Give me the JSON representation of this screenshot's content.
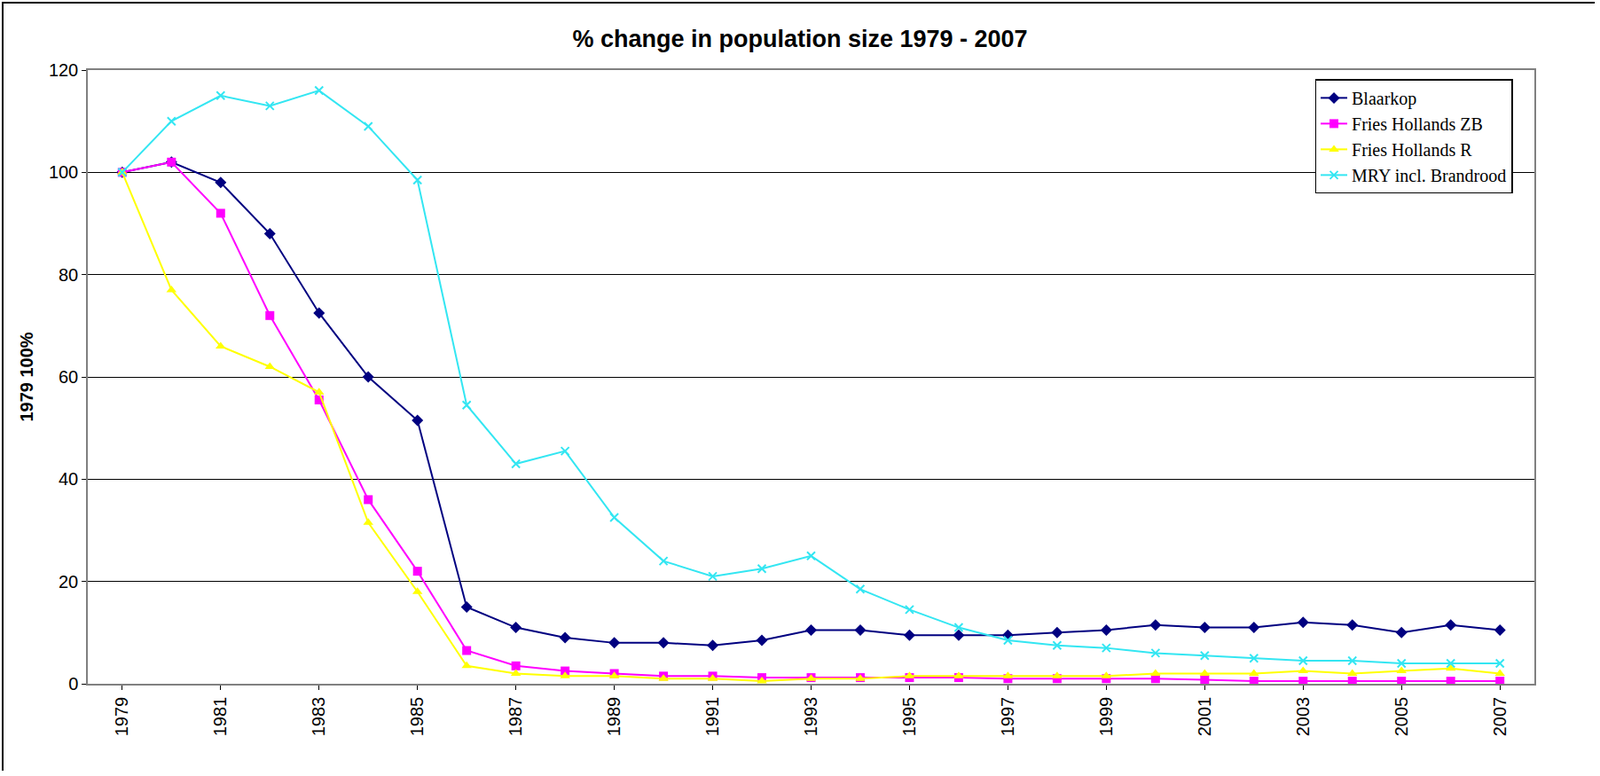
{
  "chart_data": {
    "type": "line",
    "title": "% change in population size 1979 - 2007",
    "y_label": "1979 100%",
    "x": [
      1979,
      1980,
      1981,
      1982,
      1983,
      1984,
      1985,
      1986,
      1987,
      1988,
      1989,
      1990,
      1991,
      1992,
      1993,
      1994,
      1995,
      1996,
      1997,
      1998,
      1999,
      2000,
      2001,
      2002,
      2003,
      2004,
      2005,
      2006,
      2007
    ],
    "series": [
      {
        "name": "Blaarkop",
        "color": "#000080",
        "marker": "diamond",
        "line_style": "solid",
        "values": [
          100,
          102,
          98,
          88,
          72.5,
          60,
          51.5,
          15,
          11,
          9,
          8,
          8,
          7.5,
          8.5,
          10.5,
          10.5,
          9.5,
          9.5,
          9.5,
          10,
          10.5,
          11.5,
          11,
          11,
          12,
          11.5,
          10,
          11.5,
          10.5
        ]
      },
      {
        "name": "Fries Hollands ZB",
        "color": "#ff00ff",
        "marker": "square",
        "line_style": "solid",
        "values": [
          100,
          102,
          92,
          72,
          55.5,
          36,
          22,
          6.5,
          3.5,
          2.5,
          2,
          1.5,
          1.5,
          1.2,
          1.2,
          1.2,
          1.2,
          1.2,
          1,
          1,
          1,
          1,
          0.8,
          0.5,
          0.5,
          0.5,
          0.5,
          0.5,
          0.5
        ]
      },
      {
        "name": "Fries Hollands R",
        "color": "#ffff00",
        "marker": "triangle-up",
        "line_style": "solid",
        "values": [
          100,
          77,
          66,
          62,
          57,
          31.5,
          18,
          3.5,
          2,
          1.5,
          1.5,
          1,
          1,
          0.5,
          1,
          1,
          1.5,
          1.5,
          1.5,
          1.5,
          1.5,
          2,
          2,
          2,
          2.5,
          2,
          2.5,
          3,
          2
        ]
      },
      {
        "name": "MRY incl. Brandrood",
        "color": "#33e6f2",
        "marker": "x",
        "line_style": "solid",
        "values": [
          100,
          110,
          115,
          113,
          116,
          109,
          98.5,
          54.5,
          43,
          45.5,
          32.5,
          24,
          21,
          22.5,
          25,
          18.5,
          14.5,
          11,
          8.5,
          7.5,
          7,
          6,
          5.5,
          5,
          4.5,
          4.5,
          4,
          4,
          4
        ]
      }
    ],
    "xlim": [
      1978.3,
      2007.7
    ],
    "xticks": [
      1979,
      1981,
      1983,
      1985,
      1987,
      1989,
      1991,
      1993,
      1995,
      1997,
      1999,
      2001,
      2003,
      2005,
      2007
    ],
    "ylim": [
      0,
      120
    ],
    "yticks": [
      0,
      20,
      40,
      60,
      80,
      100,
      120
    ],
    "grid": true,
    "legend": "top-right"
  }
}
